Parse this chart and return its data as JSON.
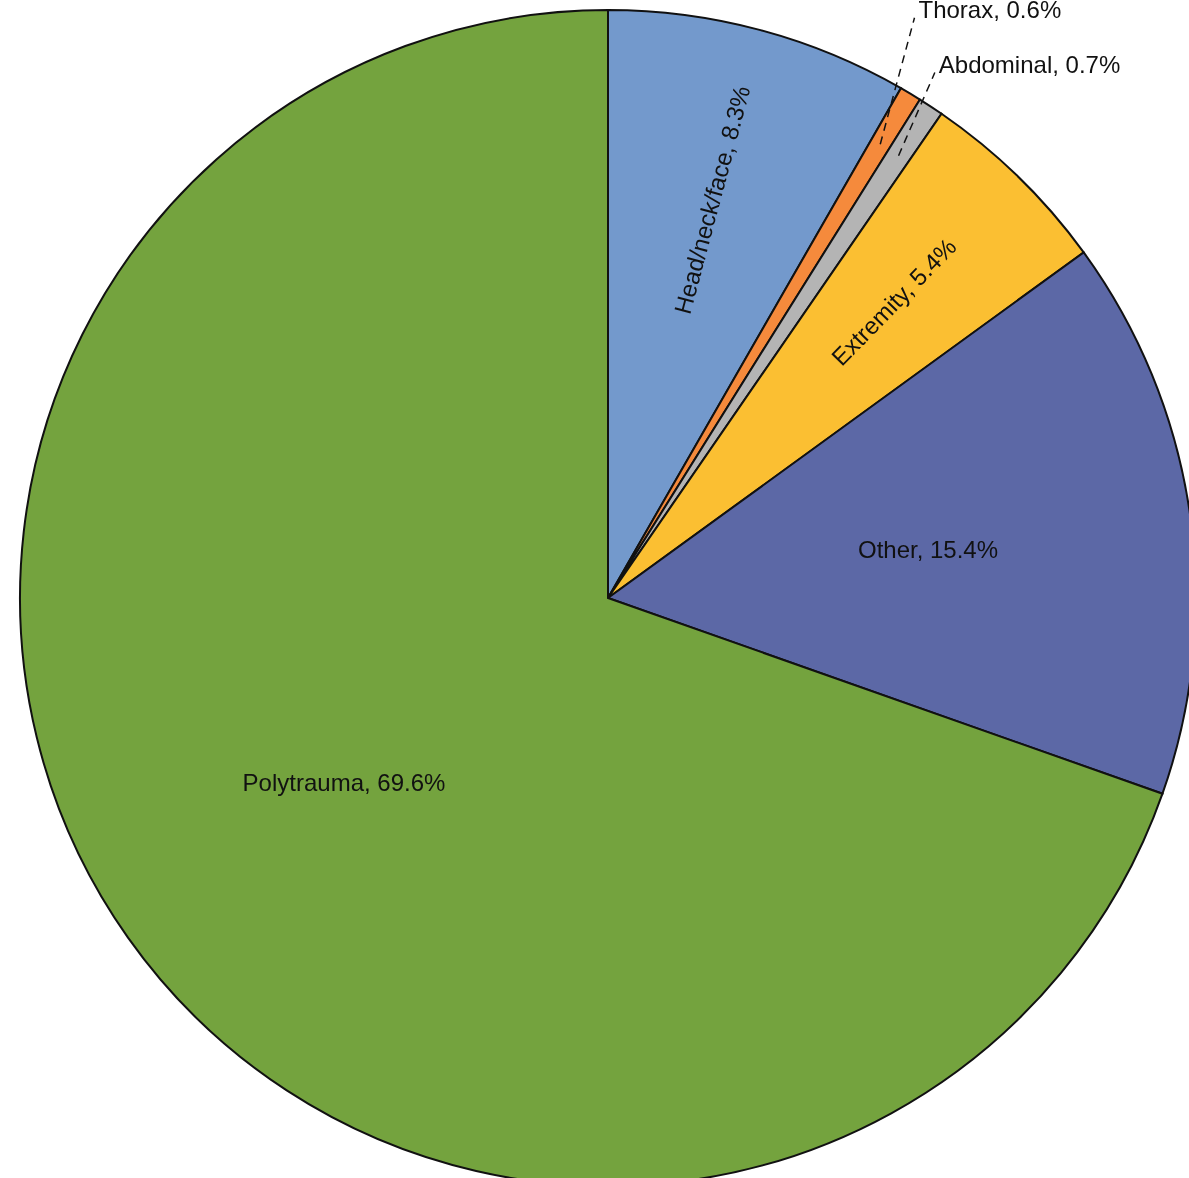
{
  "chart_data": {
    "type": "pie",
    "categories": [
      "Head/neck/face",
      "Thorax",
      "Abdominal",
      "Extremity",
      "Other",
      "Polytrauma"
    ],
    "values": [
      8.3,
      0.6,
      0.7,
      5.4,
      15.4,
      69.6
    ],
    "value_labels": [
      "8.3%",
      "0.6%",
      "0.7%",
      "5.4%",
      "15.4%",
      "69.6%"
    ],
    "colors": [
      "#7399cc",
      "#f58a3c",
      "#b4b4b4",
      "#fbbf32",
      "#5c68a6",
      "#74a33e"
    ],
    "legend": false
  }
}
